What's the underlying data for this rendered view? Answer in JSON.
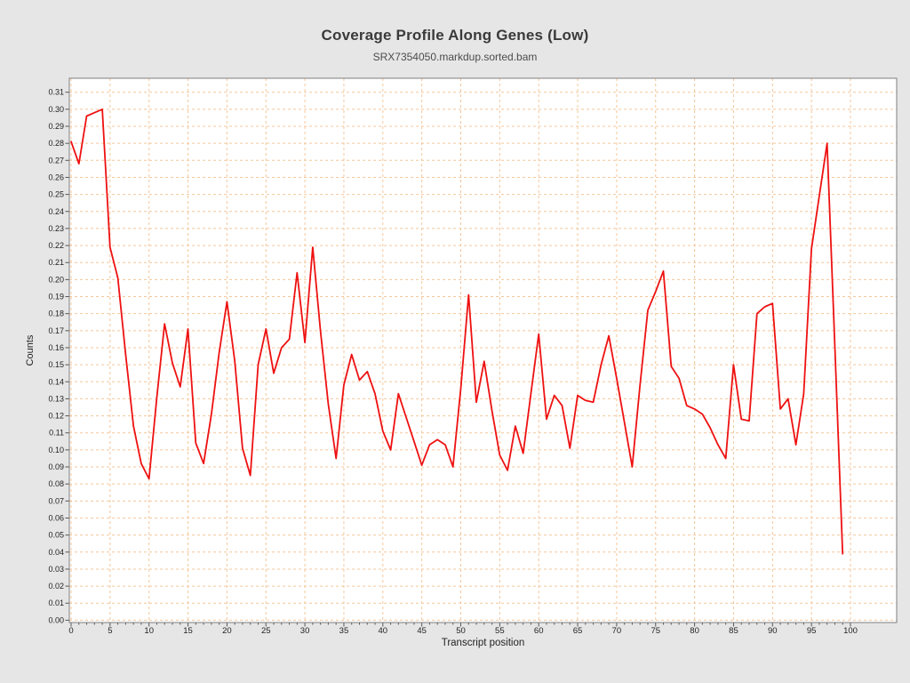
{
  "title": "Coverage Profile Along Genes (Low)",
  "subtitle": "SRX7354050.markdup.sorted.bam",
  "colors": {
    "background": "#e6e6e6",
    "plot_background": "#ffffff",
    "grid": "#f4c79c",
    "line": "#ee1111",
    "border": "#7f7f7f",
    "tick": "#555555",
    "text": "#222222",
    "title": "#3a3a3a",
    "subtitle_color": "#4c4c4c"
  },
  "chart_data": {
    "type": "line",
    "title": "Coverage Profile Along Genes (Low)",
    "subtitle": "SRX7354050.markdup.sorted.bam",
    "xlabel": "Transcript position",
    "ylabel": "Counts",
    "xlim": [
      0,
      100
    ],
    "ylim": [
      0.0,
      0.31
    ],
    "x_ticks": [
      0,
      5,
      10,
      15,
      20,
      25,
      30,
      35,
      40,
      45,
      50,
      55,
      60,
      65,
      70,
      75,
      80,
      85,
      90,
      95,
      100
    ],
    "y_tick_step": 0.01,
    "grid": true,
    "grid_style": "dashed",
    "legend": "none",
    "series": [
      {
        "name": "SRX7354050.markdup.sorted.bam",
        "x": [
          0,
          1,
          2,
          3,
          4,
          5,
          6,
          7,
          8,
          9,
          10,
          11,
          12,
          13,
          14,
          15,
          16,
          17,
          18,
          19,
          20,
          21,
          22,
          23,
          24,
          25,
          26,
          27,
          28,
          29,
          30,
          31,
          32,
          33,
          34,
          35,
          36,
          37,
          38,
          39,
          40,
          41,
          42,
          43,
          44,
          45,
          46,
          47,
          48,
          49,
          50,
          51,
          52,
          53,
          54,
          55,
          56,
          57,
          58,
          59,
          60,
          61,
          62,
          63,
          64,
          65,
          66,
          67,
          68,
          69,
          70,
          71,
          72,
          73,
          74,
          75,
          76,
          77,
          78,
          79,
          80,
          81,
          82,
          83,
          84,
          85,
          86,
          87,
          88,
          89,
          90,
          91,
          92,
          93,
          94,
          95,
          96,
          97,
          98,
          99
        ],
        "y": [
          0.281,
          0.268,
          0.296,
          0.298,
          0.3,
          0.219,
          0.201,
          0.156,
          0.114,
          0.092,
          0.083,
          0.131,
          0.174,
          0.151,
          0.137,
          0.171,
          0.104,
          0.092,
          0.121,
          0.157,
          0.187,
          0.152,
          0.101,
          0.085,
          0.15,
          0.171,
          0.145,
          0.16,
          0.165,
          0.204,
          0.163,
          0.219,
          0.17,
          0.127,
          0.095,
          0.138,
          0.156,
          0.141,
          0.146,
          0.133,
          0.111,
          0.1,
          0.133,
          0.119,
          0.105,
          0.091,
          0.103,
          0.106,
          0.103,
          0.09,
          0.136,
          0.191,
          0.128,
          0.152,
          0.123,
          0.097,
          0.088,
          0.114,
          0.098,
          0.133,
          0.168,
          0.118,
          0.132,
          0.126,
          0.101,
          0.132,
          0.129,
          0.128,
          0.15,
          0.167,
          0.142,
          0.116,
          0.09,
          0.138,
          0.182,
          0.193,
          0.205,
          0.149,
          0.142,
          0.126,
          0.124,
          0.121,
          0.113,
          0.103,
          0.095,
          0.15,
          0.118,
          0.117,
          0.18,
          0.184,
          0.186,
          0.124,
          0.13,
          0.103,
          0.133,
          0.218,
          0.249,
          0.28,
          0.16,
          0.039
        ]
      }
    ]
  }
}
